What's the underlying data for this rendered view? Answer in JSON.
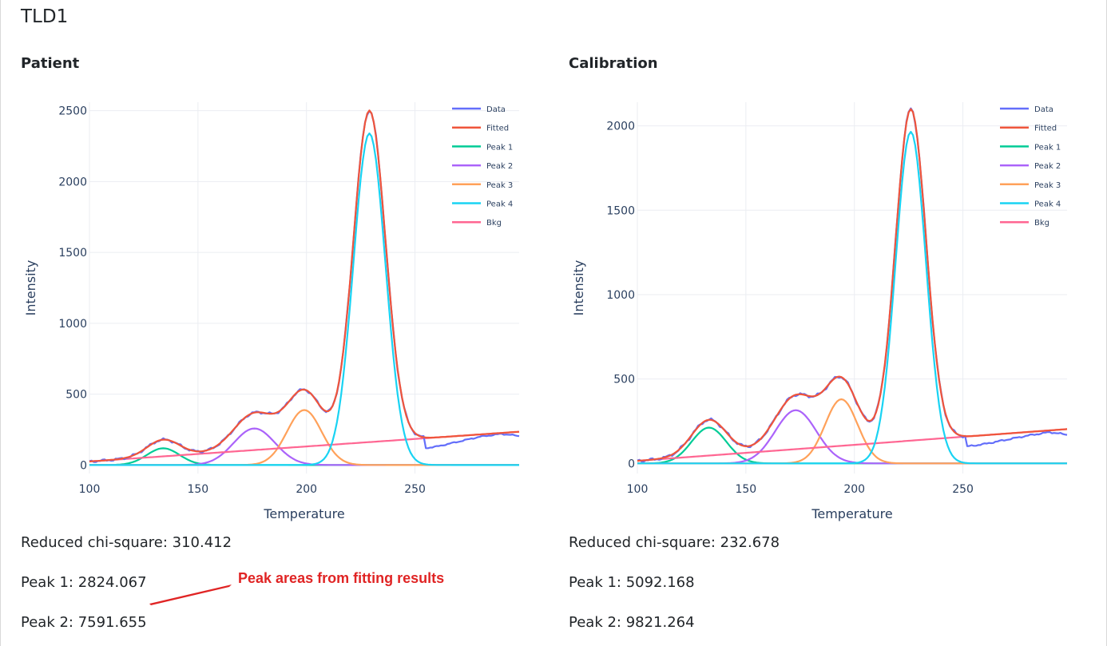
{
  "page": {
    "title": "TLD1"
  },
  "annotation": {
    "text": "Peak areas from fitting results",
    "color": "#e02424"
  },
  "panels": [
    {
      "title": "Patient",
      "results": [
        "Reduced chi-square: 310.412",
        "Peak 1: 2824.067",
        "Peak 2: 7591.655"
      ]
    },
    {
      "title": "Calibration",
      "results": [
        "Reduced chi-square: 232.678",
        "Peak 1: 5092.168",
        "Peak 2: 9821.264"
      ]
    }
  ],
  "legend_colors": {
    "Data": "#636efa",
    "Fitted": "#ef553b",
    "Peak 1": "#00cc96",
    "Peak 2": "#ab63fa",
    "Peak 3": "#ffa15a",
    "Peak 4": "#19d3f3",
    "Bkg": "#ff6692"
  },
  "chart_data": [
    {
      "type": "line",
      "title": "Patient",
      "xlabel": "Temperature",
      "ylabel": "Intensity",
      "xlim": [
        100,
        298
      ],
      "ylim": [
        -60,
        2560
      ],
      "xticks": [
        100,
        150,
        200,
        250
      ],
      "yticks": [
        0,
        500,
        1000,
        1500,
        2000,
        2500
      ],
      "legend": [
        "Data",
        "Fitted",
        "Peak 1",
        "Peak 2",
        "Peak 3",
        "Peak 4",
        "Bkg"
      ],
      "legend_position": "top-right",
      "peaks": [
        {
          "name": "Peak 1",
          "center": 134,
          "height": 118,
          "sigma": 7.5
        },
        {
          "name": "Peak 2",
          "center": 176,
          "height": 258,
          "sigma": 9.5
        },
        {
          "name": "Peak 3",
          "center": 199,
          "height": 388,
          "sigma": 8.0
        },
        {
          "name": "Peak 4",
          "center": 229,
          "height": 2340,
          "sigma": 7.4
        }
      ],
      "background": {
        "start": 25,
        "slope": 1.06
      },
      "data_tail": {
        "x": [
          255,
          260,
          270,
          280,
          290,
          298
        ],
        "y": [
          120,
          130,
          165,
          200,
          220,
          205
        ]
      }
    },
    {
      "type": "line",
      "title": "Calibration",
      "xlabel": "Temperature",
      "ylabel": "Intensity",
      "xlim": [
        100,
        298
      ],
      "ylim": [
        -60,
        2140
      ],
      "xticks": [
        100,
        150,
        200,
        250
      ],
      "yticks": [
        0,
        500,
        1000,
        1500,
        2000
      ],
      "legend": [
        "Data",
        "Fitted",
        "Peak 1",
        "Peak 2",
        "Peak 3",
        "Peak 4",
        "Bkg"
      ],
      "legend_position": "top-right",
      "peaks": [
        {
          "name": "Peak 1",
          "center": 133,
          "height": 212,
          "sigma": 8.0
        },
        {
          "name": "Peak 2",
          "center": 173,
          "height": 315,
          "sigma": 9.5
        },
        {
          "name": "Peak 3",
          "center": 194,
          "height": 380,
          "sigma": 7.5
        },
        {
          "name": "Peak 4",
          "center": 226,
          "height": 1965,
          "sigma": 7.0
        }
      ],
      "background": {
        "start": 15,
        "slope": 0.95
      },
      "data_tail": {
        "x": [
          252,
          260,
          270,
          280,
          290,
          298
        ],
        "y": [
          100,
          115,
          140,
          165,
          185,
          170
        ]
      }
    }
  ]
}
